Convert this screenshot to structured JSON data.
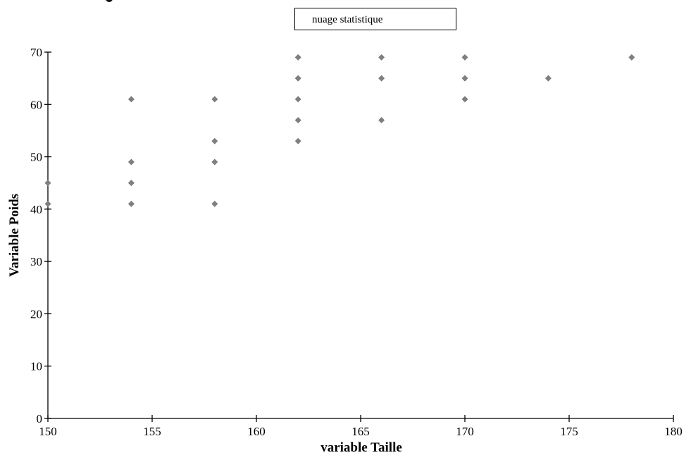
{
  "chart_data": {
    "type": "scatter",
    "title": "",
    "legend": {
      "label": "nuage statistique",
      "position": "top-center"
    },
    "xlabel": "variable Taille",
    "ylabel": "Variable Poids",
    "xlim": [
      150,
      180
    ],
    "ylim": [
      0,
      70
    ],
    "x_ticks": [
      "150",
      "155",
      "160",
      "165",
      "170",
      "175",
      "180"
    ],
    "y_ticks": [
      "0",
      "10",
      "20",
      "30",
      "40",
      "50",
      "60",
      "70"
    ],
    "grid": false,
    "colors": {
      "marker": "#808080",
      "axis": "#000000"
    },
    "series": [
      {
        "name": "nuage statistique",
        "points": [
          [
            150,
            45
          ],
          [
            150,
            41
          ],
          [
            154,
            61
          ],
          [
            154,
            49
          ],
          [
            154,
            45
          ],
          [
            154,
            41
          ],
          [
            158,
            61
          ],
          [
            158,
            53
          ],
          [
            158,
            49
          ],
          [
            158,
            41
          ],
          [
            162,
            69
          ],
          [
            162,
            65
          ],
          [
            162,
            61
          ],
          [
            162,
            57
          ],
          [
            162,
            53
          ],
          [
            166,
            69
          ],
          [
            166,
            65
          ],
          [
            166,
            57
          ],
          [
            170,
            69
          ],
          [
            170,
            65
          ],
          [
            170,
            61
          ],
          [
            174,
            65
          ],
          [
            178,
            69
          ]
        ]
      }
    ]
  }
}
